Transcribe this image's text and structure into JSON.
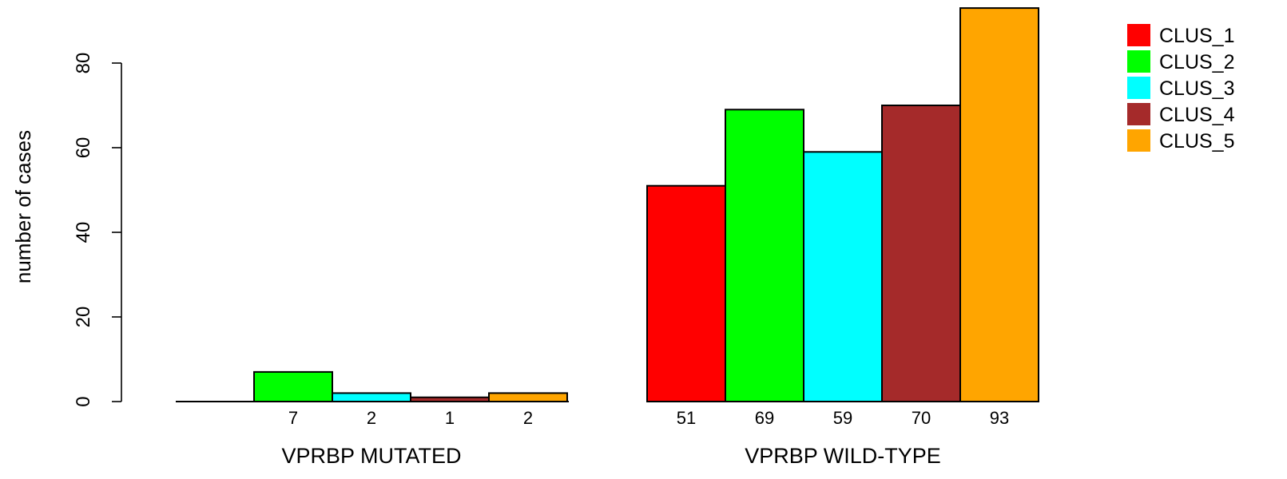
{
  "chart_data": {
    "type": "bar",
    "ylabel": "number of cases",
    "ylim": [
      0,
      93
    ],
    "yticks": [
      0,
      20,
      40,
      60,
      80
    ],
    "groups": [
      {
        "label": "VPRBP MUTATED",
        "values": [
          0,
          7,
          2,
          1,
          2
        ],
        "value_labels": [
          "",
          "7",
          "2",
          "1",
          "2"
        ]
      },
      {
        "label": "VPRBP WILD-TYPE",
        "values": [
          51,
          69,
          59,
          70,
          93
        ],
        "value_labels": [
          "51",
          "69",
          "59",
          "70",
          "93"
        ]
      }
    ],
    "series": [
      {
        "name": "CLUS_1",
        "color": "#ff0000"
      },
      {
        "name": "CLUS_2",
        "color": "#00ff00"
      },
      {
        "name": "CLUS_3",
        "color": "#00ffff"
      },
      {
        "name": "CLUS_4",
        "color": "#a52a2a"
      },
      {
        "name": "CLUS_5",
        "color": "#ffa500"
      }
    ],
    "legend_position": "top-right",
    "grid": false
  }
}
